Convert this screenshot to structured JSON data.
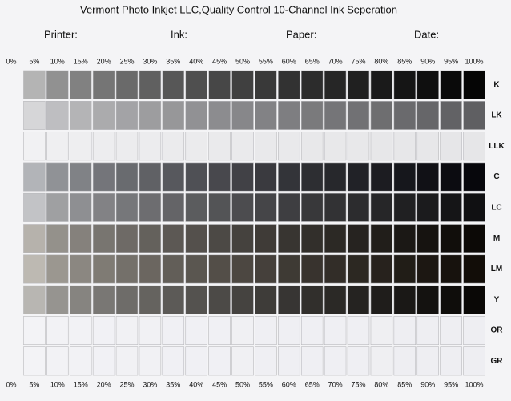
{
  "header": {
    "title": "Vermont Photo Inkjet LLC,Quality Control 10-Channel Ink Seperation",
    "fields": [
      "Printer:",
      "Ink:",
      "Paper:",
      "Date:"
    ]
  },
  "columns": [
    "0%",
    "5%",
    "10%",
    "15%",
    "20%",
    "25%",
    "30%",
    "35%",
    "40%",
    "45%",
    "50%",
    "55%",
    "60%",
    "65%",
    "70%",
    "75%",
    "80%",
    "85%",
    "90%",
    "95%",
    "100%"
  ],
  "rows": [
    {
      "name": "K",
      "light": "#b4b4b4",
      "dark": "#050505"
    },
    {
      "name": "LK",
      "light": "#d6d6d8",
      "dark": "#5f5f62"
    },
    {
      "name": "LLK",
      "light": "#f1f1f3",
      "dark": "#e6e6e8"
    },
    {
      "name": "C",
      "light": "#b2b4b8",
      "dark": "#07070c"
    },
    {
      "name": "LC",
      "light": "#c2c3c6",
      "dark": "#101012"
    },
    {
      "name": "M",
      "light": "#b6b2ac",
      "dark": "#0c0906"
    },
    {
      "name": "LM",
      "light": "#bdb9b2",
      "dark": "#120d08"
    },
    {
      "name": "Y",
      "light": "#b8b6b2",
      "dark": "#0a0806"
    },
    {
      "name": "OR",
      "light": "#f3f3f6",
      "dark": "#eeeef2"
    },
    {
      "name": "GR",
      "light": "#f3f3f6",
      "dark": "#eeeef2"
    }
  ]
}
